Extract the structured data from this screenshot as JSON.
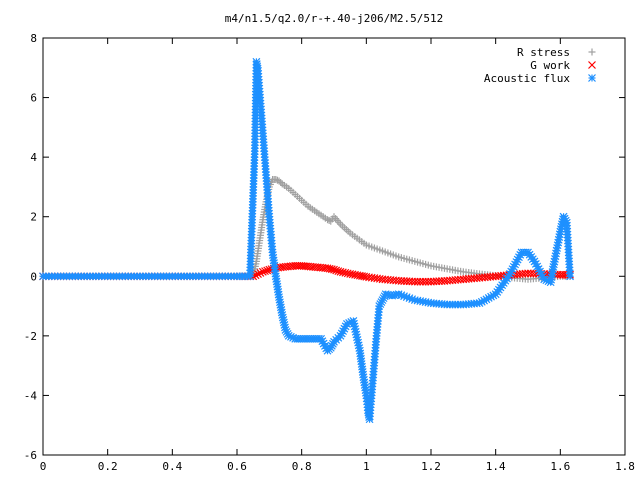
{
  "chart_data": {
    "type": "scatter",
    "title": "m4/n1.5/q2.0/r-+.40-j206/M2.5/512",
    "xlabel": "",
    "ylabel": "",
    "xlim": [
      0,
      1.8
    ],
    "ylim": [
      -6,
      8
    ],
    "grid": false,
    "legend_position": "top-right",
    "xticks": [
      "0",
      "0.2",
      "0.4",
      "0.6",
      "0.8",
      "1",
      "1.2",
      "1.4",
      "1.6",
      "1.8"
    ],
    "yticks": [
      "-6",
      "-4",
      "-2",
      "0",
      "2",
      "4",
      "6",
      "8"
    ],
    "series": [
      {
        "name": "R stress",
        "marker": "+",
        "color": "#a0a0a0",
        "x": [
          0.0,
          0.1,
          0.2,
          0.3,
          0.4,
          0.5,
          0.6,
          0.65,
          0.66,
          0.67,
          0.68,
          0.69,
          0.7,
          0.71,
          0.72,
          0.73,
          0.74,
          0.76,
          0.78,
          0.8,
          0.82,
          0.84,
          0.86,
          0.88,
          0.89,
          0.9,
          0.92,
          0.95,
          1.0,
          1.05,
          1.1,
          1.15,
          1.2,
          1.25,
          1.3,
          1.35,
          1.4,
          1.45,
          1.5,
          1.55,
          1.6,
          1.63
        ],
        "y": [
          0.0,
          0.0,
          0.0,
          0.0,
          0.0,
          0.0,
          0.0,
          0.0,
          0.5,
          1.2,
          1.9,
          2.5,
          3.0,
          3.25,
          3.25,
          3.2,
          3.1,
          2.95,
          2.75,
          2.55,
          2.35,
          2.2,
          2.05,
          1.9,
          1.85,
          2.0,
          1.75,
          1.45,
          1.05,
          0.85,
          0.65,
          0.5,
          0.35,
          0.25,
          0.15,
          0.08,
          0.02,
          -0.05,
          -0.1,
          -0.05,
          0.0,
          0.0
        ]
      },
      {
        "name": "G work",
        "marker": "x",
        "color": "#ff0000",
        "x": [
          0.0,
          0.1,
          0.2,
          0.3,
          0.4,
          0.5,
          0.6,
          0.65,
          0.68,
          0.7,
          0.72,
          0.75,
          0.78,
          0.8,
          0.82,
          0.85,
          0.88,
          0.9,
          0.92,
          0.95,
          0.98,
          1.0,
          1.05,
          1.1,
          1.15,
          1.2,
          1.25,
          1.3,
          1.35,
          1.4,
          1.45,
          1.5,
          1.55,
          1.6,
          1.63
        ],
        "y": [
          0.0,
          0.0,
          0.0,
          0.0,
          0.0,
          0.0,
          0.0,
          0.0,
          0.15,
          0.22,
          0.28,
          0.32,
          0.35,
          0.35,
          0.33,
          0.3,
          0.27,
          0.22,
          0.15,
          0.08,
          0.02,
          -0.02,
          -0.1,
          -0.15,
          -0.18,
          -0.18,
          -0.15,
          -0.1,
          -0.05,
          0.0,
          0.05,
          0.1,
          0.08,
          0.05,
          0.05
        ]
      },
      {
        "name": "Acoustic flux",
        "marker": "*",
        "color": "#1e90ff",
        "x": [
          0.0,
          0.1,
          0.2,
          0.3,
          0.4,
          0.5,
          0.6,
          0.64,
          0.655,
          0.66,
          0.665,
          0.67,
          0.675,
          0.68,
          0.685,
          0.69,
          0.695,
          0.7,
          0.705,
          0.71,
          0.72,
          0.73,
          0.74,
          0.75,
          0.76,
          0.78,
          0.8,
          0.82,
          0.84,
          0.86,
          0.88,
          0.89,
          0.9,
          0.92,
          0.94,
          0.96,
          0.98,
          0.99,
          1.0,
          1.005,
          1.01,
          1.02,
          1.03,
          1.04,
          1.05,
          1.06,
          1.08,
          1.1,
          1.15,
          1.2,
          1.25,
          1.3,
          1.35,
          1.4,
          1.44,
          1.48,
          1.5,
          1.52,
          1.55,
          1.57,
          1.58,
          1.6,
          1.61,
          1.62,
          1.63
        ],
        "y": [
          0.0,
          0.0,
          0.0,
          0.0,
          0.0,
          0.0,
          0.0,
          0.0,
          4.2,
          7.2,
          6.9,
          6.2,
          5.5,
          4.8,
          4.1,
          3.4,
          2.7,
          2.0,
          1.4,
          0.8,
          0.0,
          -0.7,
          -1.3,
          -1.8,
          -2.0,
          -2.1,
          -2.1,
          -2.1,
          -2.1,
          -2.1,
          -2.5,
          -2.4,
          -2.2,
          -2.0,
          -1.6,
          -1.5,
          -2.5,
          -3.3,
          -4.0,
          -4.5,
          -4.8,
          -3.5,
          -2.2,
          -1.0,
          -0.8,
          -0.6,
          -0.65,
          -0.6,
          -0.8,
          -0.9,
          -0.95,
          -0.95,
          -0.9,
          -0.6,
          0.0,
          0.8,
          0.8,
          0.5,
          -0.1,
          -0.2,
          0.4,
          1.5,
          2.0,
          1.8,
          0.0
        ]
      }
    ]
  }
}
